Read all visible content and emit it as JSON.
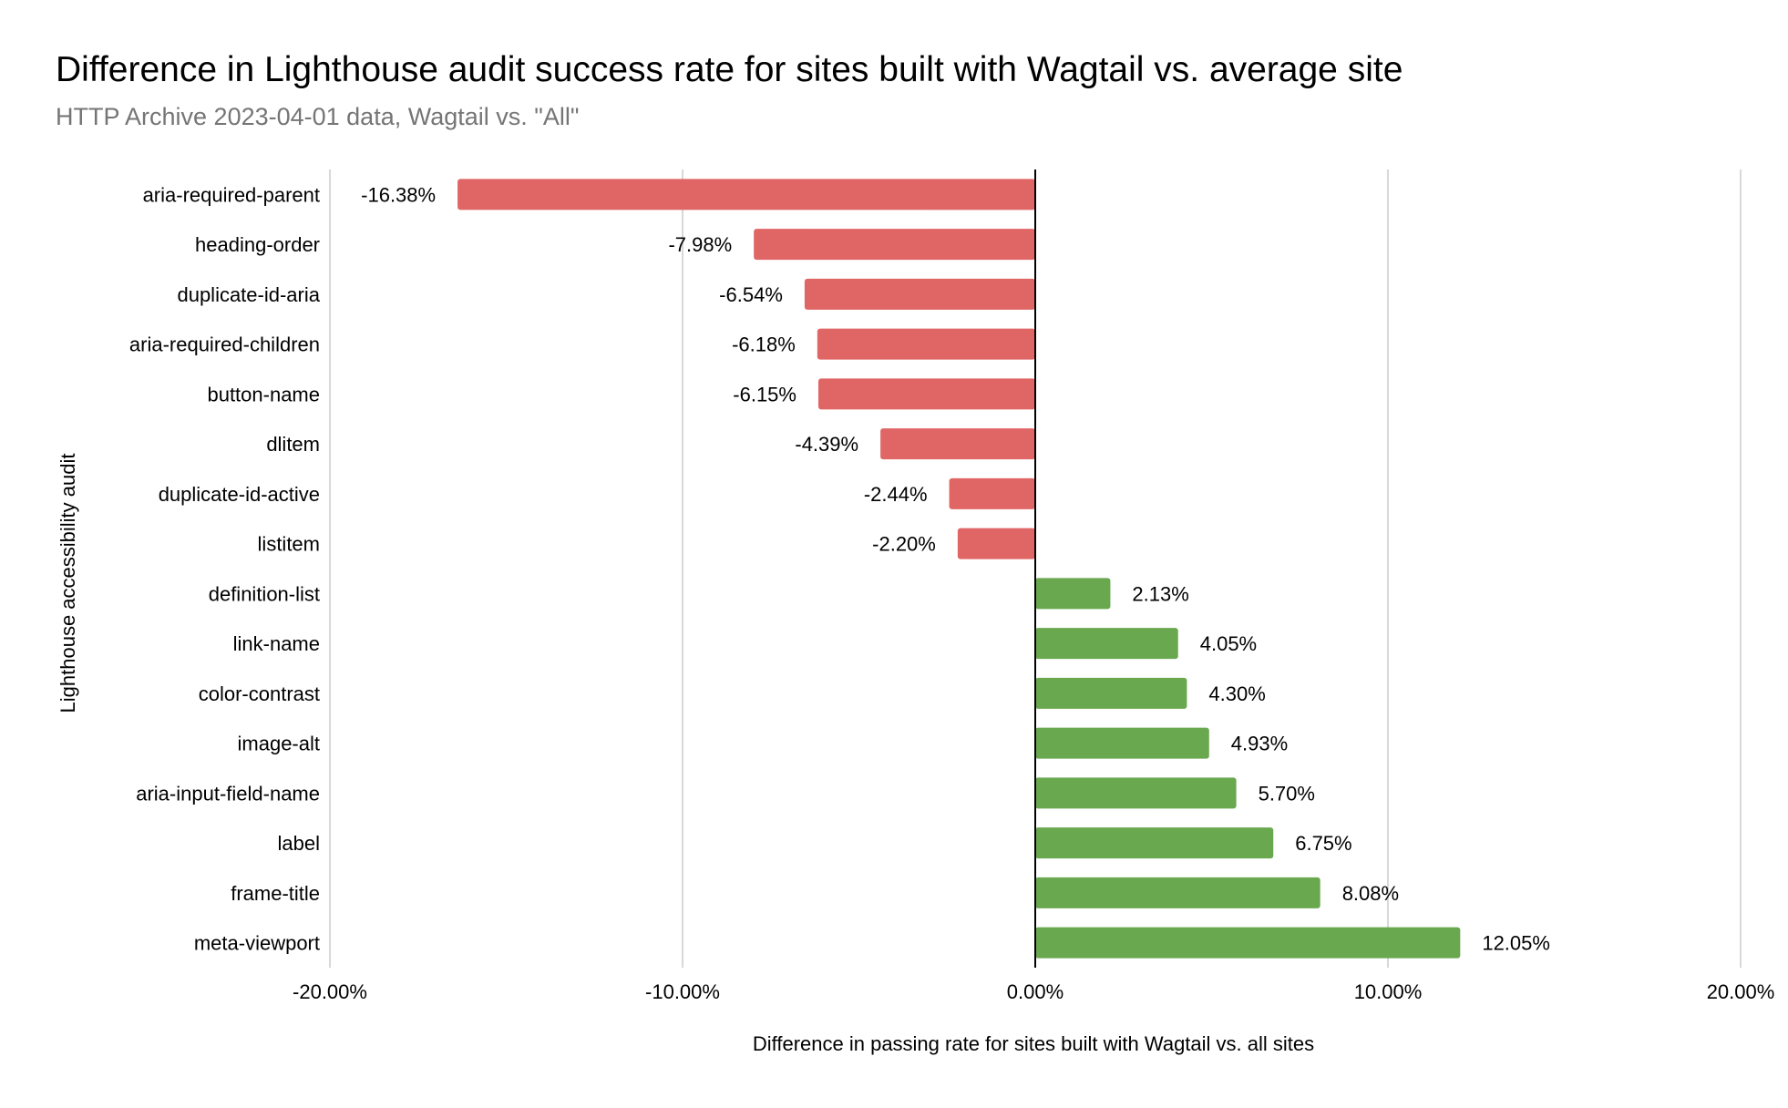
{
  "chart_data": {
    "type": "bar",
    "orientation": "horizontal",
    "title": "Difference in Lighthouse audit success rate for sites built with Wagtail vs. average site",
    "subtitle": "HTTP Archive 2023-04-01 data, Wagtail vs. \"All\"",
    "xlabel": "Difference in passing rate for sites built with Wagtail vs. all sites",
    "ylabel": "Lighthouse accessibility audit",
    "xlim": [
      -20,
      20
    ],
    "x_ticks": [
      -20,
      -10,
      0,
      10,
      20
    ],
    "x_tick_labels": [
      "-20.00%",
      "-10.00%",
      "0.00%",
      "10.00%",
      "20.00%"
    ],
    "grid": true,
    "legend": "none",
    "categories": [
      "aria-required-parent",
      "heading-order",
      "duplicate-id-aria",
      "aria-required-children",
      "button-name",
      "dlitem",
      "duplicate-id-active",
      "listitem",
      "definition-list",
      "link-name",
      "color-contrast",
      "image-alt",
      "aria-input-field-name",
      "label",
      "frame-title",
      "meta-viewport"
    ],
    "values": [
      -16.38,
      -7.98,
      -6.54,
      -6.18,
      -6.15,
      -4.39,
      -2.44,
      -2.2,
      2.13,
      4.05,
      4.3,
      4.93,
      5.7,
      6.75,
      8.08,
      12.05
    ],
    "data_labels": [
      "-16.38%",
      "-7.98%",
      "-6.54%",
      "-6.18%",
      "-6.15%",
      "-4.39%",
      "-2.44%",
      "-2.20%",
      "2.13%",
      "4.05%",
      "4.30%",
      "4.93%",
      "5.70%",
      "6.75%",
      "8.08%",
      "12.05%"
    ],
    "colors": {
      "negative": "#e06666",
      "positive": "#6aa84f",
      "grid": "#cccccc",
      "zero_line": "#000000"
    }
  }
}
